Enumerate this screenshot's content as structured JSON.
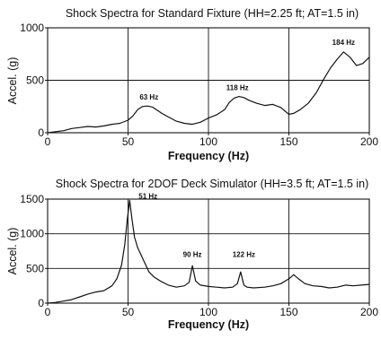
{
  "chart_data": [
    {
      "type": "line",
      "title": "Shock Spectra for Standard Fixture (HH=2.25 ft; AT=1.5 in)",
      "xlabel": "Frequency (Hz)",
      "ylabel": "Accel. (g)",
      "xlim": [
        0,
        200
      ],
      "ylim": [
        0,
        1000
      ],
      "xticks": [
        "0",
        "50",
        "100",
        "150",
        "200"
      ],
      "yticks": [
        "0",
        "500",
        "1000"
      ],
      "grid": true,
      "x": [
        0,
        5,
        10,
        15,
        20,
        25,
        30,
        35,
        40,
        45,
        50,
        53,
        56,
        59,
        62,
        65,
        68,
        71,
        75,
        80,
        85,
        90,
        95,
        100,
        105,
        110,
        113,
        116,
        119,
        122,
        125,
        130,
        135,
        140,
        145,
        150,
        153,
        157,
        162,
        167,
        172,
        176,
        180,
        184,
        188,
        192,
        196,
        200
      ],
      "y": [
        0,
        10,
        20,
        40,
        50,
        60,
        55,
        65,
        80,
        90,
        120,
        160,
        220,
        250,
        255,
        245,
        215,
        185,
        150,
        110,
        90,
        80,
        100,
        140,
        170,
        220,
        290,
        330,
        345,
        335,
        310,
        280,
        260,
        270,
        240,
        175,
        185,
        220,
        280,
        380,
        520,
        620,
        700,
        770,
        720,
        640,
        660,
        720
      ],
      "annotations": [
        {
          "x": 63,
          "y": 300,
          "text": "63 Hz"
        },
        {
          "x": 118,
          "y": 390,
          "text": "118 Hz"
        },
        {
          "x": 184,
          "y": 820,
          "text": "184 Hz"
        }
      ]
    },
    {
      "type": "line",
      "title": "Shock Spectra for 2DOF Deck Simulator (HH=3.5 ft; AT=1.5 in)",
      "xlabel": "Frequency (Hz)",
      "ylabel": "Accel. (g)",
      "xlim": [
        0,
        200
      ],
      "ylim": [
        0,
        1500
      ],
      "xticks": [
        "0",
        "50",
        "100",
        "150",
        "200"
      ],
      "yticks": [
        "0",
        "500",
        "1000",
        "1500"
      ],
      "grid": true,
      "x": [
        0,
        5,
        10,
        15,
        20,
        25,
        30,
        35,
        40,
        43,
        46,
        48,
        49.5,
        51,
        52.5,
        54,
        56,
        58,
        60,
        63,
        66,
        70,
        75,
        80,
        85,
        88,
        90,
        92,
        95,
        100,
        105,
        110,
        115,
        118,
        120,
        122,
        124,
        128,
        135,
        140,
        145,
        150,
        153,
        156,
        160,
        165,
        170,
        175,
        180,
        185,
        190,
        195,
        200
      ],
      "y": [
        0,
        10,
        30,
        50,
        90,
        130,
        160,
        180,
        250,
        350,
        550,
        850,
        1200,
        1480,
        1200,
        950,
        800,
        700,
        600,
        450,
        380,
        320,
        260,
        230,
        250,
        300,
        540,
        320,
        260,
        240,
        230,
        220,
        230,
        280,
        450,
        260,
        230,
        220,
        230,
        250,
        280,
        350,
        410,
        350,
        280,
        250,
        240,
        220,
        230,
        260,
        250,
        260,
        270
      ],
      "annotations": [
        {
          "x": 51,
          "y": 1480,
          "text": "51 Hz"
        },
        {
          "x": 90,
          "y": 640,
          "text": "90 Hz"
        },
        {
          "x": 122,
          "y": 640,
          "text": "122 Hz"
        }
      ]
    }
  ]
}
